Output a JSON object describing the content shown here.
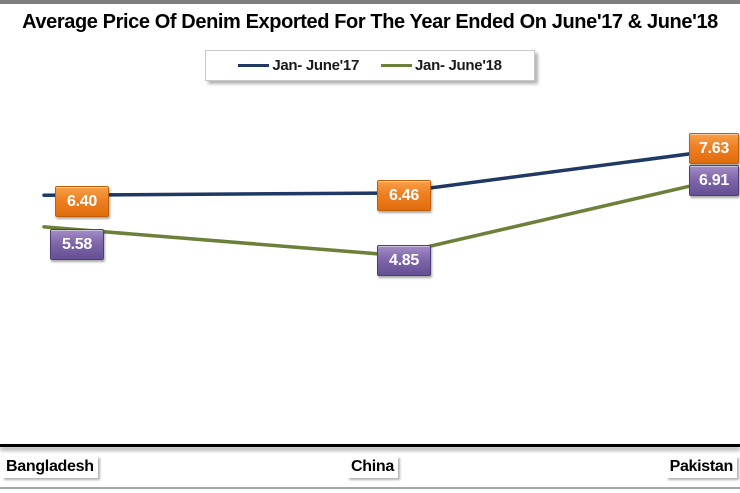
{
  "chart_data": {
    "type": "line",
    "title": "Average Price Of Denim Exported For The Year Ended On June'17 & June'18",
    "categories": [
      "Bangladesh",
      "China",
      "Pakistan"
    ],
    "series": [
      {
        "name": "Jan- June'17",
        "line_color": "#1f3864",
        "label_box_color": "#ed7d31",
        "values": [
          6.4,
          6.46,
          7.63
        ],
        "formatted": [
          "6.40",
          "6.46",
          "7.63"
        ]
      },
      {
        "name": "Jan- June'18",
        "line_color": "#6b8039",
        "label_box_color": "#7b5ea7",
        "values": [
          5.58,
          4.85,
          6.91
        ],
        "formatted": [
          "5.58",
          "4.85",
          "6.91"
        ]
      }
    ],
    "legend_position": "top-center",
    "grid": false,
    "y_axis_visible": false,
    "x_axis_color": "#000000",
    "top_strip_color": "#7f7f7f"
  }
}
